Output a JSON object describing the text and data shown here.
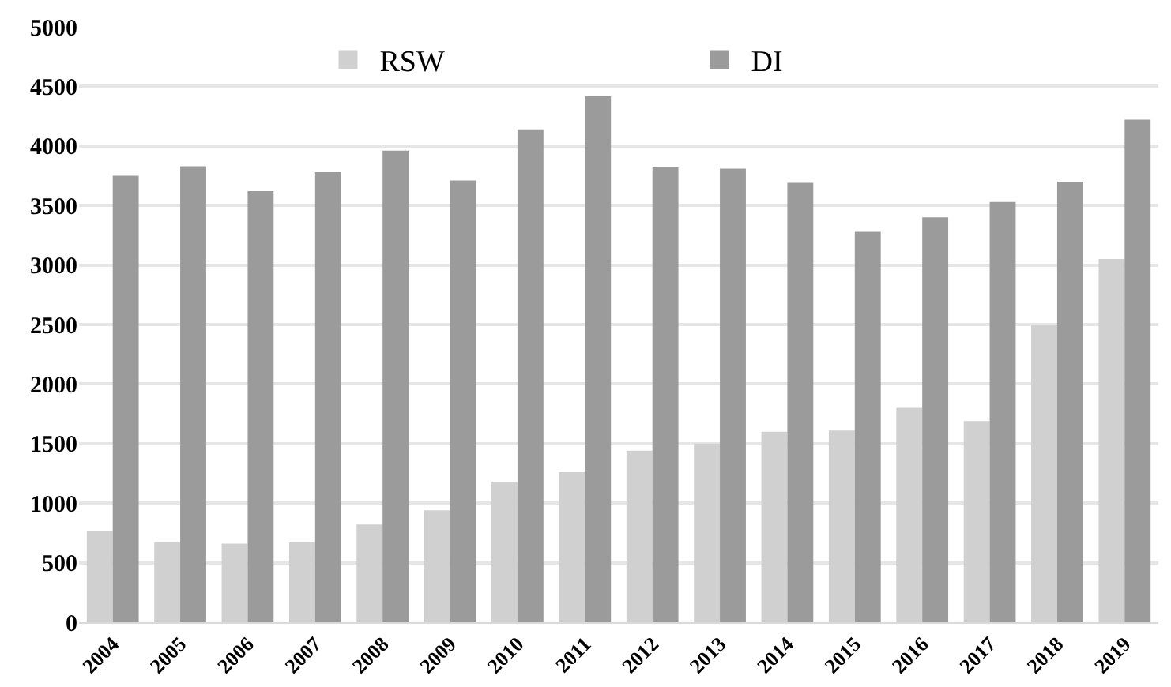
{
  "chart_data": {
    "type": "bar",
    "categories": [
      "2004",
      "2005",
      "2006",
      "2007",
      "2008",
      "2009",
      "2010",
      "2011",
      "2012",
      "2013",
      "2014",
      "2015",
      "2016",
      "2017",
      "2018",
      "2019"
    ],
    "series": [
      {
        "name": "RSW",
        "color": "#d0d0d0",
        "values": [
          770,
          670,
          660,
          670,
          820,
          940,
          1180,
          1260,
          1440,
          1500,
          1600,
          1610,
          1800,
          1690,
          2500,
          3050
        ]
      },
      {
        "name": "DI",
        "color": "#9b9b9b",
        "values": [
          3750,
          3830,
          3620,
          3780,
          3960,
          3710,
          4140,
          4420,
          3820,
          3810,
          3690,
          3280,
          3400,
          3530,
          3700,
          4220
        ]
      }
    ],
    "ylim": [
      0,
      5000
    ],
    "yticks": [
      0,
      500,
      1000,
      1500,
      2000,
      2500,
      3000,
      3500,
      4000,
      4500,
      5000
    ],
    "grid": "y",
    "legend": "top"
  }
}
